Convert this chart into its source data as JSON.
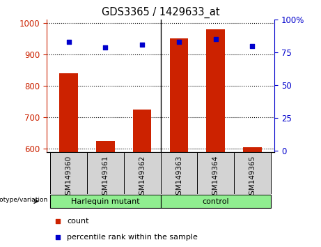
{
  "title": "GDS3365 / 1429633_at",
  "samples": [
    "GSM149360",
    "GSM149361",
    "GSM149362",
    "GSM149363",
    "GSM149364",
    "GSM149365"
  ],
  "counts": [
    840,
    625,
    725,
    950,
    980,
    605
  ],
  "percentiles": [
    83,
    79,
    81,
    83,
    85,
    80
  ],
  "ylim_left": [
    590,
    1010
  ],
  "ylim_right": [
    -1.0,
    100
  ],
  "yticks_left": [
    600,
    700,
    800,
    900,
    1000
  ],
  "yticks_right": [
    0,
    25,
    50,
    75,
    100
  ],
  "ytick_labels_right": [
    "0",
    "25",
    "50",
    "75",
    "100%"
  ],
  "bar_color": "#cc2200",
  "dot_color": "#0000cc",
  "group_labels": [
    "Harlequin mutant",
    "control"
  ],
  "genotype_label": "genotype/variation",
  "legend_count": "count",
  "legend_percentile": "percentile rank within the sample",
  "left_axis_color": "#cc2200",
  "right_axis_color": "#0000cc",
  "cell_bg_color": "#d3d3d3",
  "group_bg_color": "#90ee90",
  "fig_bg": "#ffffff"
}
